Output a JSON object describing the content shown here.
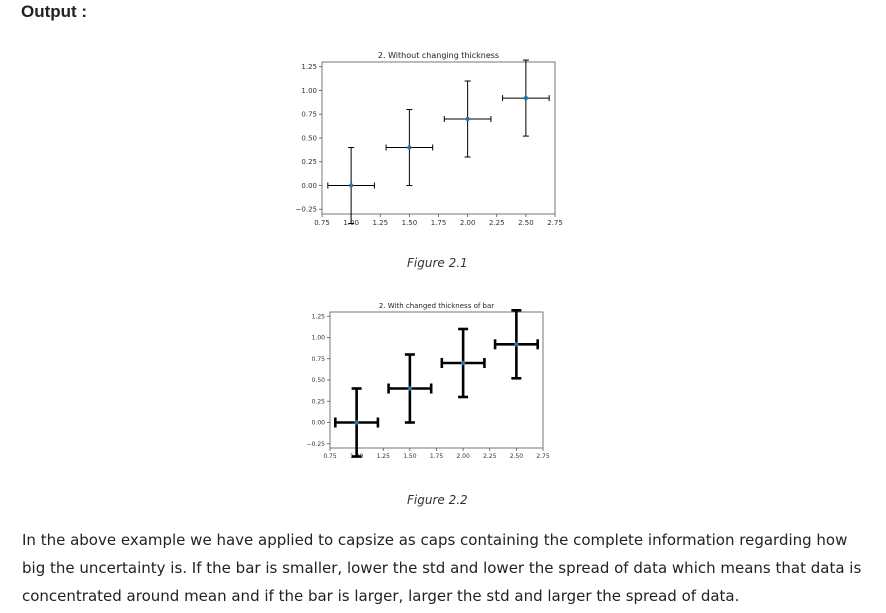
{
  "heading": "Output :",
  "chart_data": [
    {
      "type": "errorbar",
      "title": "2. Without changing thickness",
      "xlabel": "",
      "ylabel": "",
      "x": [
        1.0,
        1.5,
        2.0,
        2.5
      ],
      "y": [
        0.0,
        0.4,
        0.7,
        0.92
      ],
      "xerr": [
        0.2,
        0.2,
        0.2,
        0.2
      ],
      "yerr": [
        0.4,
        0.4,
        0.4,
        0.4
      ],
      "xlim": [
        0.75,
        2.75
      ],
      "ylim": [
        -0.3,
        1.3
      ],
      "xticks": [
        "0.75",
        "1.00",
        "1.25",
        "1.50",
        "1.75",
        "2.00",
        "2.25",
        "2.50",
        "2.75"
      ],
      "yticks": [
        "−0.25",
        "0.00",
        "0.25",
        "0.50",
        "0.75",
        "1.00",
        "1.25"
      ],
      "grid": false,
      "marker_color": "#1f77b4",
      "errorbar_color": "#000000",
      "caption": "Figure 2.1"
    },
    {
      "type": "errorbar",
      "title": "2. With changed thickness of bar",
      "xlabel": "",
      "ylabel": "",
      "x": [
        1.0,
        1.5,
        2.0,
        2.5
      ],
      "y": [
        0.0,
        0.4,
        0.7,
        0.92
      ],
      "xerr": [
        0.2,
        0.2,
        0.2,
        0.2
      ],
      "yerr": [
        0.4,
        0.4,
        0.4,
        0.4
      ],
      "xlim": [
        0.75,
        2.75
      ],
      "ylim": [
        -0.3,
        1.3
      ],
      "xticks": [
        "0.75",
        "1.00",
        "1.25",
        "1.50",
        "1.75",
        "2.00",
        "2.25",
        "2.50",
        "2.75"
      ],
      "yticks": [
        "−0.25",
        "0.00",
        "0.25",
        "0.50",
        "0.75",
        "1.00",
        "1.25"
      ],
      "grid": false,
      "marker_color": "#1f77b4",
      "errorbar_color": "#000000",
      "caption": "Figure 2.2"
    }
  ],
  "paragraph": "In the above example we have applied to capsize as caps containing the complete information regarding how big the uncertainty is. If the bar is smaller, lower the std and lower the spread of data which means that data is concentrated around mean and if the bar is larger, larger the std and larger the spread of data."
}
